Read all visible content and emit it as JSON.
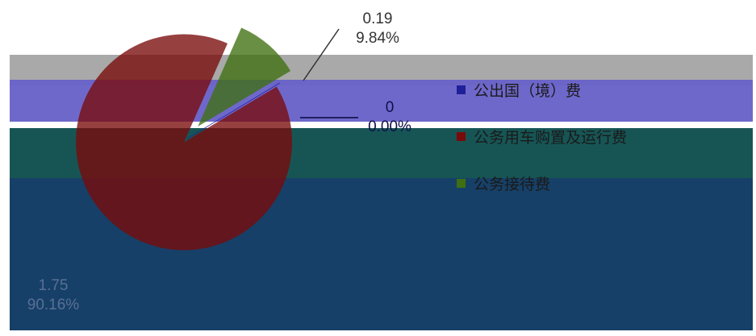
{
  "chart_data": {
    "type": "pie",
    "title": "",
    "categories": [
      "公出国（境）费",
      "公务用车购置及运行费",
      "公务接待费"
    ],
    "values": [
      0,
      1.75,
      0.19
    ],
    "percents": [
      "0.00%",
      "90.16%",
      "9.84%"
    ],
    "value_labels": [
      "0",
      "1.75",
      "0.19"
    ],
    "colors": [
      "#1f1f9a",
      "#7a0a0a",
      "#3f6f10"
    ],
    "legend_position": "right",
    "exploded": true
  },
  "overlay_colors": [
    "#a9a9a9",
    "#6a63c9",
    "#0f4f4f",
    "#0e3a62"
  ]
}
